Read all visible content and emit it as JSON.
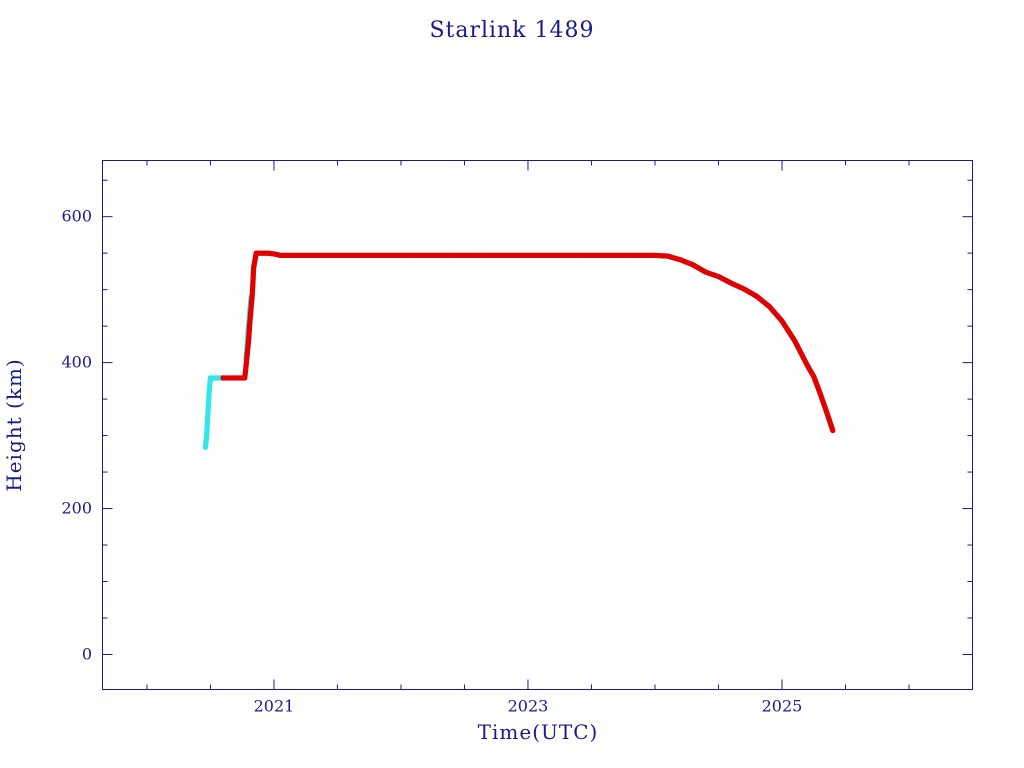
{
  "chart_data": {
    "type": "scatter",
    "title": "Starlink 1489",
    "xlabel": "Time(UTC)",
    "ylabel": "Height (km)",
    "xlim": [
      2019.65,
      2026.5
    ],
    "ylim": [
      -48,
      677
    ],
    "x_major_ticks": [
      2021,
      2023,
      2025
    ],
    "x_tick_labels": [
      "2021",
      "2023",
      "2025"
    ],
    "y_major_ticks": [
      0,
      200,
      400,
      600
    ],
    "y_tick_labels": [
      "0",
      "200",
      "400",
      "600"
    ],
    "grid": false,
    "colors": {
      "axis": "#1a1a8c",
      "series_a": "#35e6e6",
      "series_b": "#e00000"
    },
    "series": [
      {
        "color": "#35e6e6",
        "segments": [
          [
            [
              2020.46,
              284
            ],
            [
              2020.47,
              300
            ],
            [
              2020.48,
              330
            ],
            [
              2020.49,
              360
            ],
            [
              2020.5,
              379
            ],
            [
              2020.55,
              379
            ],
            [
              2020.6,
              379
            ]
          ],
          [
            [
              2020.78,
              405
            ],
            [
              2020.79,
              425
            ],
            [
              2020.8,
              450
            ],
            [
              2020.82,
              490
            ]
          ]
        ]
      },
      {
        "color": "#e00000",
        "segments": [
          [
            [
              2020.6,
              379
            ],
            [
              2020.7,
              379
            ],
            [
              2020.77,
              379
            ],
            [
              2020.78,
              395
            ],
            [
              2020.8,
              430
            ],
            [
              2020.81,
              455
            ],
            [
              2020.83,
              495
            ],
            [
              2020.84,
              530
            ],
            [
              2020.86,
              550
            ],
            [
              2020.95,
              550
            ],
            [
              2021.0,
              549
            ],
            [
              2021.05,
              547
            ],
            [
              2022.0,
              547
            ],
            [
              2023.0,
              547
            ],
            [
              2024.0,
              547
            ],
            [
              2024.1,
              546
            ],
            [
              2024.2,
              541
            ],
            [
              2024.3,
              534
            ],
            [
              2024.4,
              524
            ],
            [
              2024.5,
              518
            ],
            [
              2024.6,
              509
            ],
            [
              2024.7,
              501
            ],
            [
              2024.8,
              491
            ],
            [
              2024.9,
              477
            ],
            [
              2025.0,
              457
            ],
            [
              2025.1,
              430
            ],
            [
              2025.2,
              396
            ],
            [
              2025.25,
              381
            ],
            [
              2025.3,
              358
            ],
            [
              2025.35,
              333
            ],
            [
              2025.4,
              307
            ]
          ]
        ]
      }
    ]
  }
}
